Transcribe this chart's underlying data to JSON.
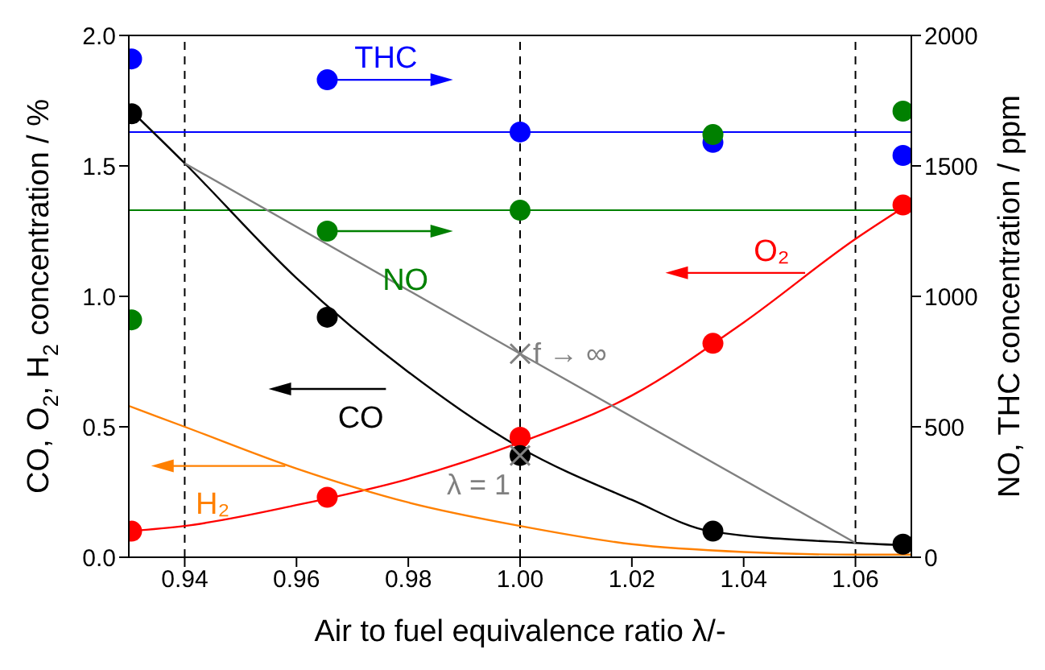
{
  "chart_data": {
    "type": "scatter",
    "xlabel": "Air to fuel equivalence ratio λ/-",
    "ylabel": "CO, O$_{2}$, H$_{2}$ concentration / %",
    "y2label": "NO, THC concentration / ppm",
    "xlim": [
      0.93,
      1.07
    ],
    "xticks": [
      0.94,
      0.96,
      0.98,
      {
        "value": 1,
        "label": "1.00"
      },
      1.02,
      1.04,
      1.06
    ],
    "ylim": [
      0,
      2
    ],
    "yticks": [
      {
        "value": 0,
        "label": "0.0"
      },
      0.5,
      {
        "value": 1,
        "label": "1.0"
      },
      1.5,
      {
        "value": 2,
        "label": "2.0"
      }
    ],
    "y2lim": [
      0,
      2000
    ],
    "y2ticks": [
      0,
      500,
      1000,
      1500,
      2000
    ],
    "legend": "left",
    "marker": "circle",
    "series": [
      {
        "name": "THC",
        "axis": "y2",
        "color": "#0000ff",
        "x": [
          0.9305,
          0.9655,
          1.0,
          1.0345,
          1.0685
        ],
        "values": [
          1910,
          1830,
          1630,
          1590,
          1540
        ]
      },
      {
        "name": "NO",
        "axis": "y2",
        "color": "#008000",
        "x": [
          0.9305,
          0.9655,
          1.0,
          1.0345,
          1.0685
        ],
        "values": [
          910,
          1250,
          1330,
          1620,
          1710
        ]
      },
      {
        "type": "line",
        "marker": "none",
        "color": "#ff0000",
        "x": [
          0.93,
          0.94,
          0.96,
          0.98,
          1.0,
          1.02,
          1.04,
          1.06,
          1.07
        ],
        "values": [
          0.1,
          0.12,
          0.2,
          0.3,
          0.44,
          0.62,
          0.9,
          1.22,
          1.36
        ]
      },
      {
        "name": "O₂",
        "color": "#ff0000",
        "x": [
          0.9305,
          0.9655,
          1.0,
          1.0345,
          1.0685
        ],
        "values": [
          0.1,
          0.23,
          0.46,
          0.82,
          1.35
        ]
      },
      {
        "type": "line",
        "marker": "none",
        "color": "#000000",
        "x": [
          0.93,
          0.94,
          0.96,
          0.98,
          1.0,
          1.02,
          1.034,
          1.06,
          1.07
        ],
        "values": [
          1.72,
          1.51,
          1.07,
          0.71,
          0.42,
          0.22,
          0.1,
          0.055,
          0.045
        ]
      },
      {
        "name": "CO",
        "color": "#000000",
        "x": [
          0.9305,
          0.9655,
          1.0,
          1.0345,
          1.0685
        ],
        "values": [
          1.7,
          0.92,
          0.39,
          0.1,
          0.05
        ]
      },
      {
        "name": "H₂",
        "type": "line",
        "marker": "none",
        "color": "#ff8000",
        "x": [
          0.93,
          0.94,
          0.96,
          0.98,
          1.0,
          1.02,
          1.04,
          1.06,
          1.07
        ],
        "values": [
          0.58,
          0.5,
          0.34,
          0.21,
          0.12,
          0.05,
          0.02,
          0.01,
          0.01
        ]
      },
      {
        "type": "line",
        "marker": "none",
        "color": "#808080",
        "x": [
          0.94,
          1.0,
          1.06
        ],
        "values": [
          1.51,
          0.78,
          0.055
        ]
      },
      {
        "type": "scatter",
        "marker": "cross",
        "color": "#808080",
        "x": [
          1.0,
          1.0
        ],
        "values": [
          0.78,
          0.39
        ]
      }
    ],
    "ref_lines": [
      {
        "axis": "x",
        "value": 0.94,
        "color": "#000000",
        "line_style": "dashed"
      },
      {
        "axis": "x",
        "value": 1.0,
        "color": "#000000",
        "line_style": "dashed"
      },
      {
        "axis": "x",
        "value": 1.06,
        "color": "#000000",
        "line_style": "dashed"
      },
      {
        "axis": "y2",
        "value": 1630,
        "color": "#0000ff",
        "line_style": "solid"
      },
      {
        "axis": "y2",
        "value": 1330,
        "color": "#008000",
        "line_style": "solid"
      }
    ],
    "annotations": [
      {
        "text": "f → ∞",
        "x": 1.0,
        "y": 0.78
      },
      {
        "text": "λ = 1",
        "x": 1.0,
        "y": 0.39
      }
    ]
  }
}
